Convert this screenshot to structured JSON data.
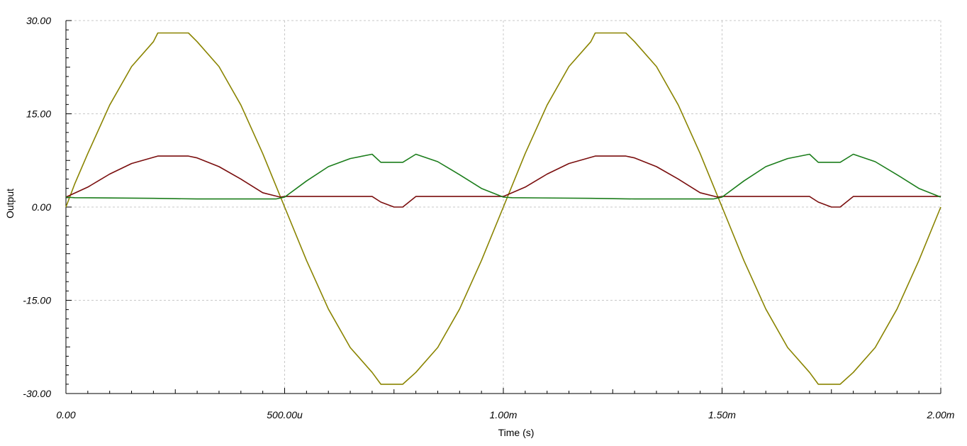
{
  "chart_data": {
    "type": "line",
    "xlabel": "Time (s)",
    "ylabel": "Output",
    "xlim": [
      0,
      0.002
    ],
    "ylim": [
      -30,
      30
    ],
    "grid": true,
    "x_ticks": [
      0,
      0.0005,
      0.001,
      0.0015,
      0.002
    ],
    "x_tick_labels": [
      "0.00",
      "500.00u",
      "1.00m",
      "1.50m",
      "2.00m"
    ],
    "y_ticks": [
      30,
      15,
      0,
      -15,
      -30
    ],
    "y_tick_labels": [
      "30.00",
      "15.00",
      "0.00",
      "-15.00",
      "-30.00"
    ],
    "series": [
      {
        "color": "#8a8400",
        "x": [
          0,
          2e-05,
          5e-05,
          0.0001,
          0.00015,
          0.0002,
          0.00021,
          0.00025,
          0.00028,
          0.0003,
          0.00035,
          0.0004,
          0.00045,
          0.0005,
          0.00055,
          0.0006,
          0.00065,
          0.0007,
          0.00072,
          0.00075,
          0.00077,
          0.0008,
          0.00085,
          0.0009,
          0.00095,
          0.001,
          0.00105,
          0.0011,
          0.00115,
          0.0012,
          0.00121,
          0.00125,
          0.00128,
          0.0013,
          0.00135,
          0.0014,
          0.00145,
          0.0015,
          0.00155,
          0.0016,
          0.00165,
          0.0017,
          0.00172,
          0.00175,
          0.00177,
          0.0018,
          0.00185,
          0.0019,
          0.00195,
          0.002
        ],
        "y": [
          0,
          3.7,
          8.6,
          16.4,
          22.6,
          26.6,
          28,
          28,
          28,
          26.6,
          22.6,
          16.4,
          8.6,
          0,
          -8.6,
          -16.4,
          -22.6,
          -26.6,
          -28.5,
          -28.5,
          -28.5,
          -26.6,
          -22.6,
          -16.4,
          -8.6,
          0,
          8.6,
          16.4,
          22.6,
          26.6,
          28,
          28,
          28,
          26.6,
          22.6,
          16.4,
          8.6,
          0,
          -8.6,
          -16.4,
          -22.6,
          -26.6,
          -28.5,
          -28.5,
          -28.5,
          -26.6,
          -22.6,
          -16.4,
          -8.6,
          0
        ]
      },
      {
        "color": "#7a0e0e",
        "x": [
          0,
          5e-05,
          0.0001,
          0.00015,
          0.0002,
          0.00021,
          0.00025,
          0.00028,
          0.0003,
          0.00035,
          0.0004,
          0.00045,
          0.00049,
          0.0005,
          0.0006,
          0.0007,
          0.00072,
          0.00075,
          0.00077,
          0.0008,
          0.00085,
          0.0009,
          0.00095,
          0.001,
          0.00105,
          0.0011,
          0.00115,
          0.0012,
          0.00121,
          0.00125,
          0.00128,
          0.0013,
          0.00135,
          0.0014,
          0.00145,
          0.00149,
          0.0015,
          0.0016,
          0.0017,
          0.00172,
          0.00175,
          0.00177,
          0.0018,
          0.00185,
          0.0019,
          0.00195,
          0.002
        ],
        "y": [
          1.6,
          3.2,
          5.3,
          7.0,
          8.0,
          8.2,
          8.2,
          8.2,
          7.9,
          6.5,
          4.5,
          2.3,
          1.6,
          1.7,
          1.7,
          1.7,
          0.8,
          0,
          0,
          1.7,
          1.7,
          1.7,
          1.7,
          1.7,
          3.2,
          5.3,
          7.0,
          8.0,
          8.2,
          8.2,
          8.2,
          7.9,
          6.5,
          4.5,
          2.3,
          1.6,
          1.7,
          1.7,
          1.7,
          0.8,
          0,
          0,
          1.7,
          1.7,
          1.7,
          1.7,
          1.7
        ]
      },
      {
        "color": "#1b7d1b",
        "x": [
          0,
          2e-05,
          0.0002,
          0.0003,
          0.0004,
          0.00048,
          0.0005,
          0.00055,
          0.0006,
          0.00065,
          0.0007,
          0.00072,
          0.00075,
          0.00077,
          0.0008,
          0.00085,
          0.0009,
          0.00095,
          0.001,
          0.00102,
          0.0012,
          0.0013,
          0.0014,
          0.00148,
          0.0015,
          0.00155,
          0.0016,
          0.00165,
          0.0017,
          0.00172,
          0.00175,
          0.00177,
          0.0018,
          0.00185,
          0.0019,
          0.00195,
          0.002
        ],
        "y": [
          1.6,
          1.5,
          1.4,
          1.3,
          1.3,
          1.3,
          1.6,
          4.2,
          6.5,
          7.8,
          8.5,
          7.2,
          7.2,
          7.2,
          8.5,
          7.3,
          5.2,
          3.0,
          1.6,
          1.5,
          1.4,
          1.3,
          1.3,
          1.3,
          1.6,
          4.2,
          6.5,
          7.8,
          8.5,
          7.2,
          7.2,
          7.2,
          8.5,
          7.3,
          5.2,
          3.0,
          1.6
        ]
      }
    ]
  }
}
